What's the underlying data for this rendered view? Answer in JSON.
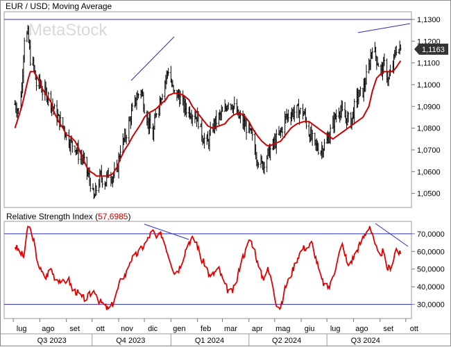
{
  "chart_data": [
    {
      "type": "line",
      "title": "EUR / USD; Moving Average",
      "watermark": "MetaStock",
      "last_price_label": "1,1163",
      "y_ticks": [
        "1,1300",
        "1,1200",
        "1,1100",
        "1,1000",
        "1,0900",
        "1,0800",
        "1,0700",
        "1,0600",
        "1,0500"
      ],
      "ylim": [
        1.0435,
        1.1335
      ],
      "reference_line": 1.13,
      "x": [
        "2023-07-03",
        "2023-07-07",
        "2023-07-11",
        "2023-07-14",
        "2023-07-18",
        "2023-07-21",
        "2023-07-25",
        "2023-07-28",
        "2023-08-01",
        "2023-08-04",
        "2023-08-09",
        "2023-08-14",
        "2023-08-18",
        "2023-08-23",
        "2023-08-28",
        "2023-09-01",
        "2023-09-06",
        "2023-09-11",
        "2023-09-15",
        "2023-09-20",
        "2023-09-25",
        "2023-09-29",
        "2023-10-03",
        "2023-10-06",
        "2023-10-11",
        "2023-10-16",
        "2023-10-20",
        "2023-10-25",
        "2023-10-30",
        "2023-11-03",
        "2023-11-08",
        "2023-11-13",
        "2023-11-17",
        "2023-11-22",
        "2023-11-27",
        "2023-12-01",
        "2023-12-06",
        "2023-12-11",
        "2023-12-15",
        "2023-12-20",
        "2023-12-26",
        "2023-12-29",
        "2024-01-04",
        "2024-01-10",
        "2024-01-16",
        "2024-01-22",
        "2024-01-26",
        "2024-02-01",
        "2024-02-07",
        "2024-02-13",
        "2024-02-19",
        "2024-02-26",
        "2024-03-04",
        "2024-03-08",
        "2024-03-14",
        "2024-03-20",
        "2024-03-26",
        "2024-04-01",
        "2024-04-05",
        "2024-04-10",
        "2024-04-16",
        "2024-04-22",
        "2024-04-26",
        "2024-05-02",
        "2024-05-08",
        "2024-05-14",
        "2024-05-20",
        "2024-05-27",
        "2024-06-04",
        "2024-06-10",
        "2024-06-17",
        "2024-06-24",
        "2024-07-01",
        "2024-07-08",
        "2024-07-15",
        "2024-07-22",
        "2024-07-29",
        "2024-08-05",
        "2024-08-12",
        "2024-08-19",
        "2024-08-23",
        "2024-08-28",
        "2024-09-02",
        "2024-09-06",
        "2024-09-11",
        "2024-09-16",
        "2024-09-20",
        "2024-09-25"
      ],
      "series": [
        {
          "name": "EUR / USD",
          "values": [
            1.091,
            1.088,
            1.099,
            1.122,
            1.123,
            1.112,
            1.108,
            1.1,
            1.101,
            1.097,
            1.096,
            1.092,
            1.088,
            1.084,
            1.081,
            1.077,
            1.073,
            1.072,
            1.068,
            1.066,
            1.06,
            1.055,
            1.047,
            1.052,
            1.058,
            1.055,
            1.059,
            1.058,
            1.06,
            1.071,
            1.075,
            1.082,
            1.088,
            1.094,
            1.098,
            1.09,
            1.082,
            1.076,
            1.088,
            1.094,
            1.103,
            1.107,
            1.096,
            1.095,
            1.09,
            1.088,
            1.087,
            1.085,
            1.076,
            1.073,
            1.081,
            1.085,
            1.088,
            1.093,
            1.09,
            1.085,
            1.082,
            1.079,
            1.075,
            1.067,
            1.063,
            1.067,
            1.07,
            1.074,
            1.078,
            1.085,
            1.087,
            1.088,
            1.087,
            1.078,
            1.072,
            1.07,
            1.074,
            1.082,
            1.089,
            1.085,
            1.083,
            1.094,
            1.097,
            1.108,
            1.118,
            1.112,
            1.106,
            1.109,
            1.102,
            1.109,
            1.117,
            1.116
          ]
        },
        {
          "name": "Moving Average",
          "values": [
            1.08,
            1.085,
            1.09,
            1.095,
            1.102,
            1.106,
            1.106,
            1.104,
            1.101,
            1.098,
            1.095,
            1.092,
            1.087,
            1.083,
            1.08,
            1.077,
            1.076,
            1.074,
            1.071,
            1.066,
            1.062,
            1.06,
            1.059,
            1.058,
            1.058,
            1.058,
            1.058,
            1.059,
            1.062,
            1.066,
            1.07,
            1.073,
            1.076,
            1.079,
            1.082,
            1.085,
            1.087,
            1.088,
            1.089,
            1.091,
            1.093,
            1.095,
            1.096,
            1.096,
            1.095,
            1.093,
            1.09,
            1.087,
            1.084,
            1.081,
            1.08,
            1.081,
            1.082,
            1.084,
            1.086,
            1.087,
            1.086,
            1.083,
            1.08,
            1.077,
            1.074,
            1.072,
            1.072,
            1.073,
            1.074,
            1.077,
            1.08,
            1.082,
            1.083,
            1.083,
            1.081,
            1.079,
            1.077,
            1.075,
            1.077,
            1.079,
            1.081,
            1.083,
            1.085,
            1.09,
            1.097,
            1.103,
            1.105,
            1.106,
            1.106,
            1.106,
            1.108,
            1.111
          ]
        }
      ]
    },
    {
      "type": "line",
      "title": "Relative Strength Index",
      "current_value_label": "57,6985",
      "y_ticks": [
        "70,0000",
        "60,0000",
        "50,0000",
        "40,0000",
        "30,0000"
      ],
      "ylim": [
        22,
        77
      ],
      "reference_lines": [
        70,
        30
      ],
      "series": [
        {
          "name": "Relative Strength Index",
          "values": [
            63,
            60,
            57,
            75,
            69,
            55,
            48,
            45,
            51,
            45,
            44,
            42,
            45,
            38,
            37,
            34,
            33,
            36,
            38,
            32,
            30,
            27,
            30,
            37,
            45,
            47,
            55,
            57,
            60,
            63,
            67,
            72,
            67,
            70,
            63,
            55,
            48,
            50,
            57,
            65,
            67,
            65,
            55,
            53,
            45,
            48,
            50,
            43,
            38,
            37,
            43,
            55,
            60,
            67,
            62,
            50,
            45,
            50,
            43,
            30,
            28,
            40,
            45,
            52,
            58,
            62,
            62,
            65,
            55,
            45,
            40,
            40,
            48,
            58,
            65,
            52,
            55,
            60,
            65,
            70,
            75,
            65,
            58,
            60,
            50,
            52,
            62,
            57.7
          ]
        }
      ]
    }
  ],
  "x_axis": {
    "months": [
      {
        "label": "lug",
        "date": "2023-07-01"
      },
      {
        "label": "ago",
        "date": "2023-08-01"
      },
      {
        "label": "set",
        "date": "2023-09-01"
      },
      {
        "label": "ott",
        "date": "2023-10-01"
      },
      {
        "label": "nov",
        "date": "2023-11-01"
      },
      {
        "label": "dic",
        "date": "2023-12-01"
      },
      {
        "label": "gen",
        "date": "2024-01-01"
      },
      {
        "label": "feb",
        "date": "2024-02-01"
      },
      {
        "label": "mar",
        "date": "2024-03-01"
      },
      {
        "label": "apr",
        "date": "2024-04-01"
      },
      {
        "label": "mag",
        "date": "2024-05-01"
      },
      {
        "label": "giu",
        "date": "2024-06-01"
      },
      {
        "label": "lug",
        "date": "2024-07-01"
      },
      {
        "label": "ago",
        "date": "2024-08-01"
      },
      {
        "label": "set",
        "date": "2024-09-01"
      },
      {
        "label": "ott",
        "date": "2024-10-01"
      }
    ],
    "quarters": [
      {
        "label": "Q3 2023",
        "date": "2023-08-15"
      },
      {
        "label": "Q4 2023",
        "date": "2023-11-15"
      },
      {
        "label": "Q1 2024",
        "date": "2024-02-15"
      },
      {
        "label": "Q2 2024",
        "date": "2024-05-15"
      },
      {
        "label": "Q3 2024",
        "date": "2024-08-15"
      }
    ]
  },
  "colors": {
    "price": "#000000",
    "moving_average": "#cc0000",
    "rsi": "#e00000",
    "reference_line": "#2b2bb0",
    "trend_line": "#2b2bb0",
    "price_tag": "#333333",
    "grid": "#c8c8c8"
  }
}
